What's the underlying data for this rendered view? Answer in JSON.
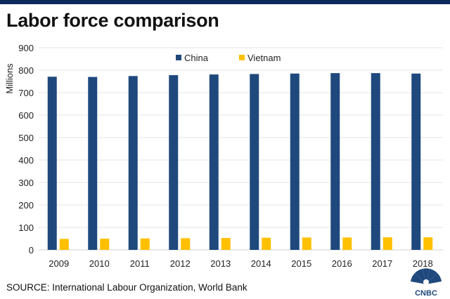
{
  "title": "Labor force comparison",
  "source": "SOURCE: International Labour Organization, World Bank",
  "logo_text": "CNBC",
  "chart_data": {
    "type": "bar",
    "title": "Labor force comparison",
    "ylabel": "Millions",
    "xlabel": "",
    "ylim": [
      0,
      900
    ],
    "yticks": [
      0,
      100,
      200,
      300,
      400,
      500,
      600,
      700,
      800,
      900
    ],
    "grid": true,
    "legend": "top-center",
    "categories": [
      "2009",
      "2010",
      "2011",
      "2012",
      "2013",
      "2014",
      "2015",
      "2016",
      "2017",
      "2018"
    ],
    "series": [
      {
        "name": "China",
        "color": "#1f497d",
        "values": [
          771,
          770,
          774,
          778,
          781,
          783,
          785,
          787,
          787,
          785
        ]
      },
      {
        "name": "Vietnam",
        "color": "#ffc000",
        "values": [
          49,
          50,
          51,
          52,
          53,
          54,
          55,
          55,
          56,
          56
        ]
      }
    ]
  }
}
